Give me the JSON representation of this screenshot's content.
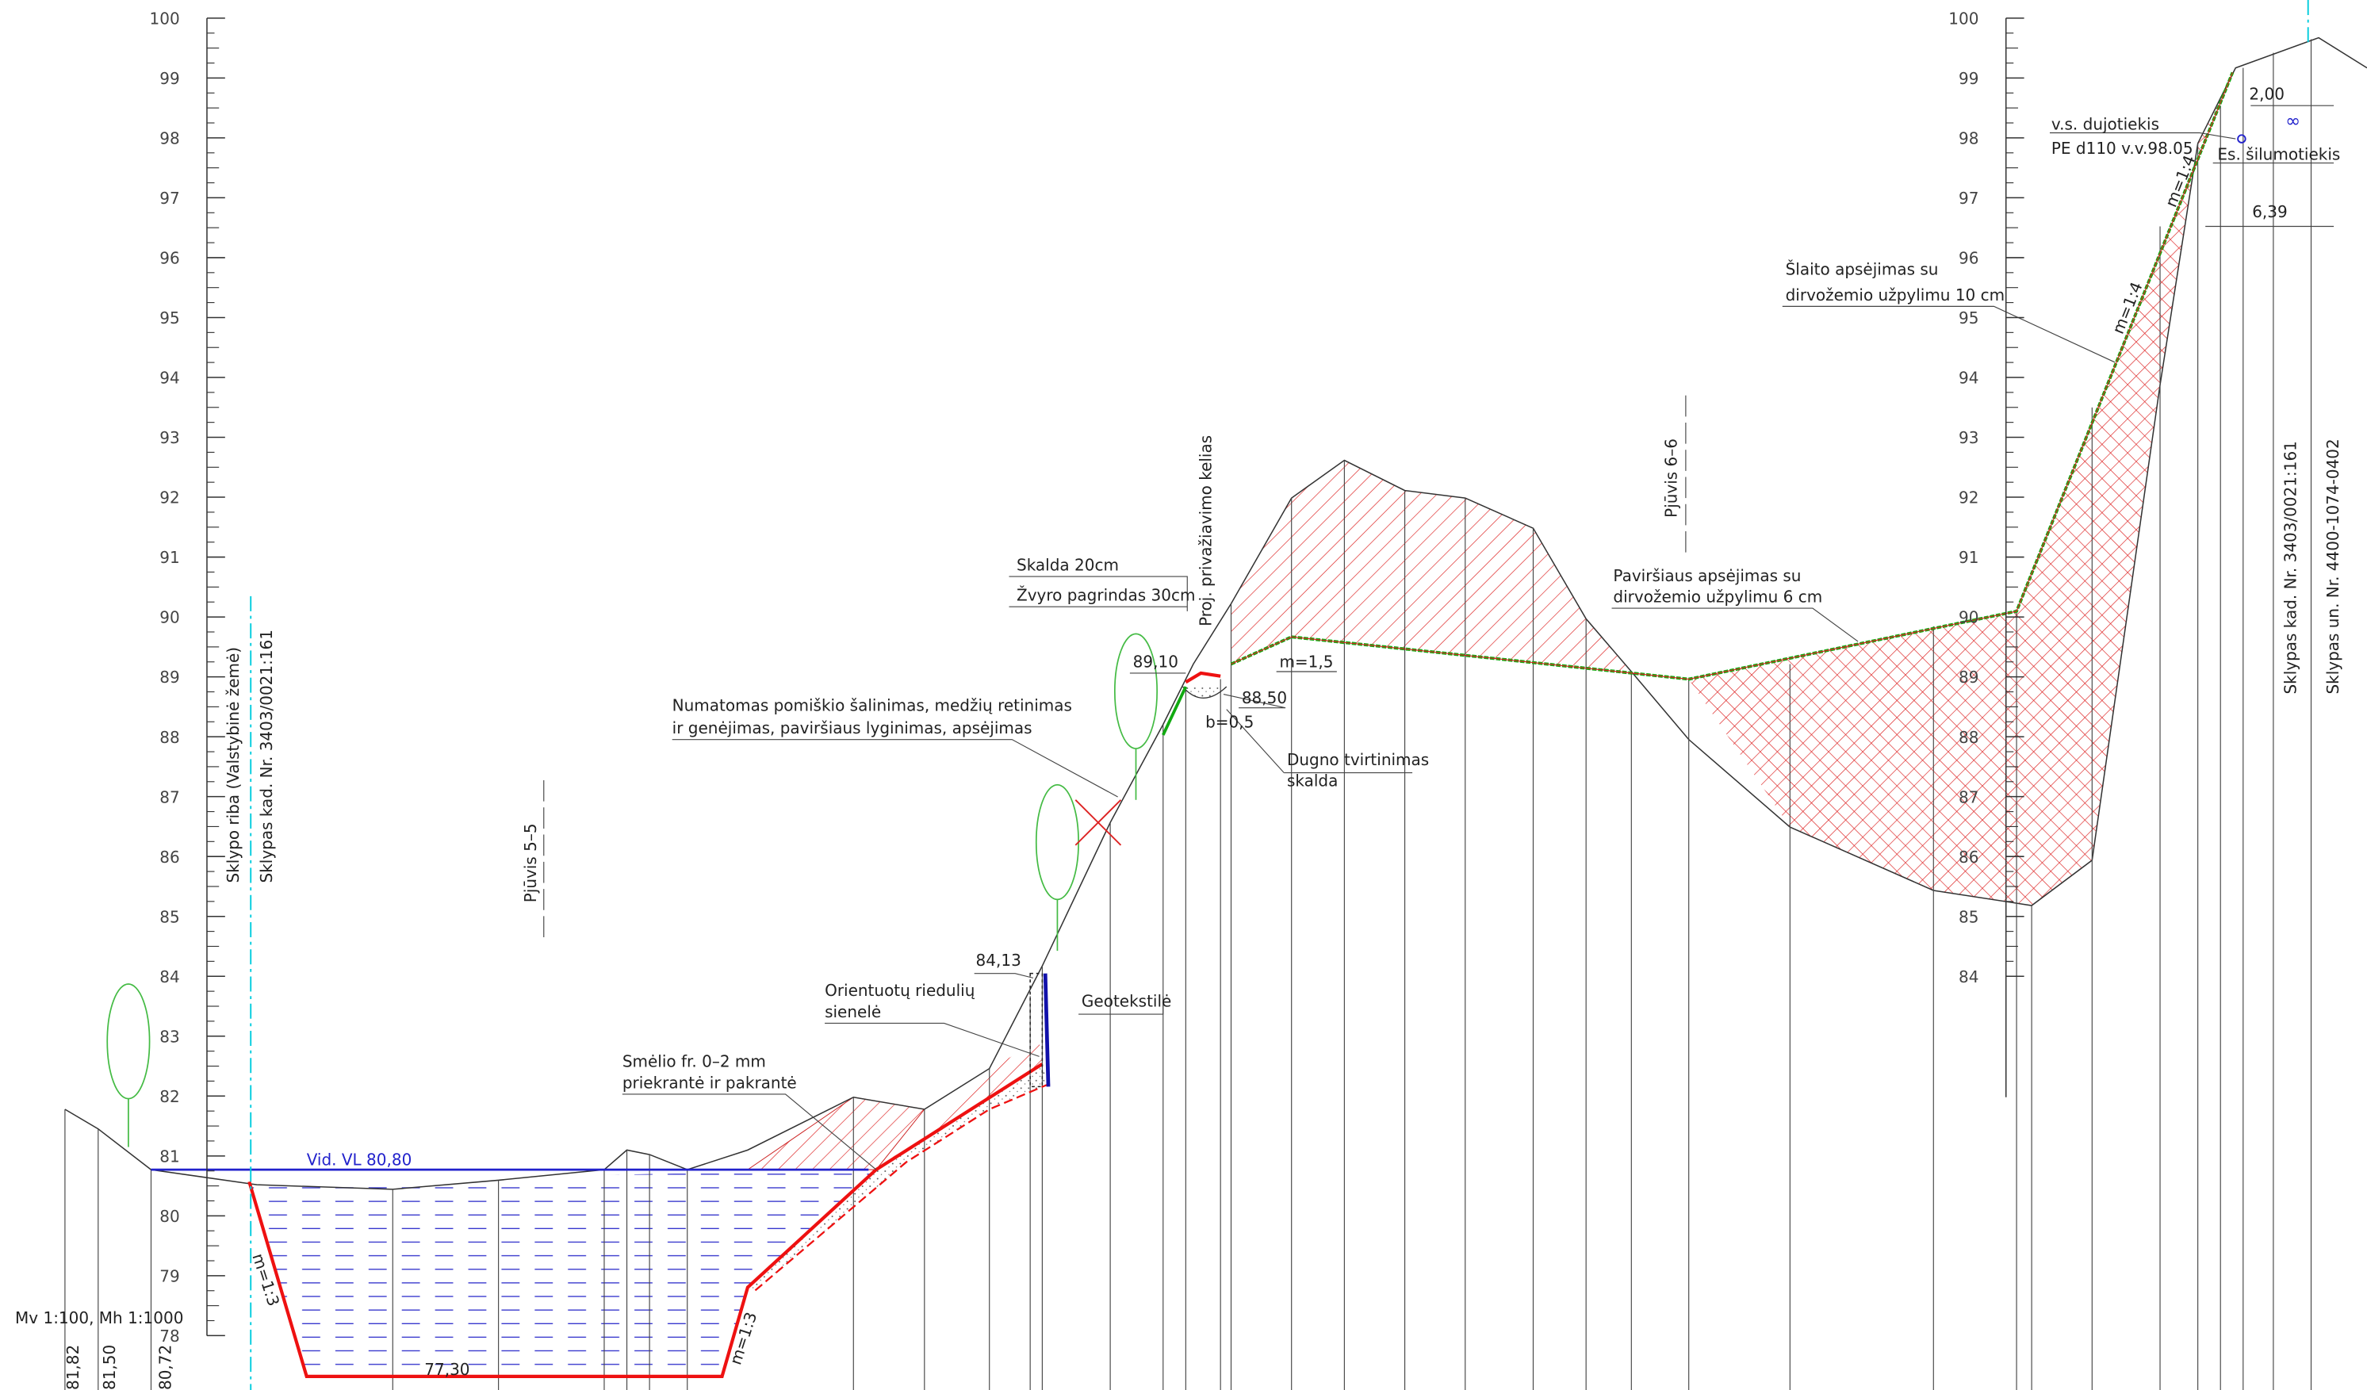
{
  "scale_left": {
    "labels": [
      "100",
      "99",
      "98",
      "97",
      "96",
      "95",
      "94",
      "93",
      "92",
      "91",
      "90",
      "89",
      "88",
      "87",
      "86",
      "85",
      "84",
      "83",
      "82",
      "81",
      "80",
      "79",
      "78"
    ]
  },
  "scale_right": {
    "labels": [
      "100",
      "99",
      "98",
      "97",
      "96",
      "95",
      "94",
      "93",
      "92",
      "91",
      "90",
      "89",
      "88",
      "87",
      "86",
      "85",
      "84"
    ]
  },
  "scale_note": "Mv 1:100, Mh 1:1000",
  "station_labels": [
    "81,82",
    "81,50",
    "80,72"
  ],
  "annotations": {
    "boundary": "Sklypo riba (Valstybinė žemė)",
    "parcel_left": "Sklypas kad. Nr. 3403/0021:161",
    "section_55": "Pjūvis 5–5",
    "section_66": "Pjūvis 6–6",
    "water_level": "Vid. VL 80,80",
    "bottom_level": "77,30",
    "slope_left": "m=1:3",
    "slope_right": "m=1:3",
    "sand_1": "Smėlio fr. 0–2 mm",
    "sand_2": "priekrantė ir pakrantė",
    "boulder_1": "Orientuotų riedulių",
    "boulder_2": "sienelė",
    "geotextile": "Geotekstilė",
    "level_8413": "84,13",
    "clearing_1": "Numatomas pomiškio šalinimas, medžių retinimas",
    "clearing_2": "ir genėjimas, paviršiaus lyginimas, apsėjimas",
    "gravel_1": "Skalda 20cm",
    "gravel_2": "Žvyro pagrindas 30cm",
    "road": "Proj. privažiavimo kelias",
    "level_8910": "89,10",
    "level_8850": "88,50",
    "slope_m15": "m=1,5",
    "width_b": "b=0,5",
    "bottom_fix_1": "Dugno tvirtinimas",
    "bottom_fix_2": "skalda",
    "surface_1": "Paviršiaus apsėjimas su",
    "surface_2": "dirvožemio užpylimu 6 cm",
    "slope_seed_1": "Šlaito apsėjimas su",
    "slope_seed_2": "dirvožemio užpylimu 10 cm",
    "slope_14a": "m=1:4",
    "slope_14b": "m=1:4",
    "gas_1": "v.s. dujotiekis",
    "gas_2": "PE d110 v.v.98.05",
    "heat": "Es. šilumotiekis",
    "dim_200": "2,00",
    "dim_639": "6,39",
    "parcel_right_1": "Sklypas kad. Nr. 3403/0021:161",
    "parcel_right_2": "Sklypas un. Nr. 4400-1074-0402"
  }
}
